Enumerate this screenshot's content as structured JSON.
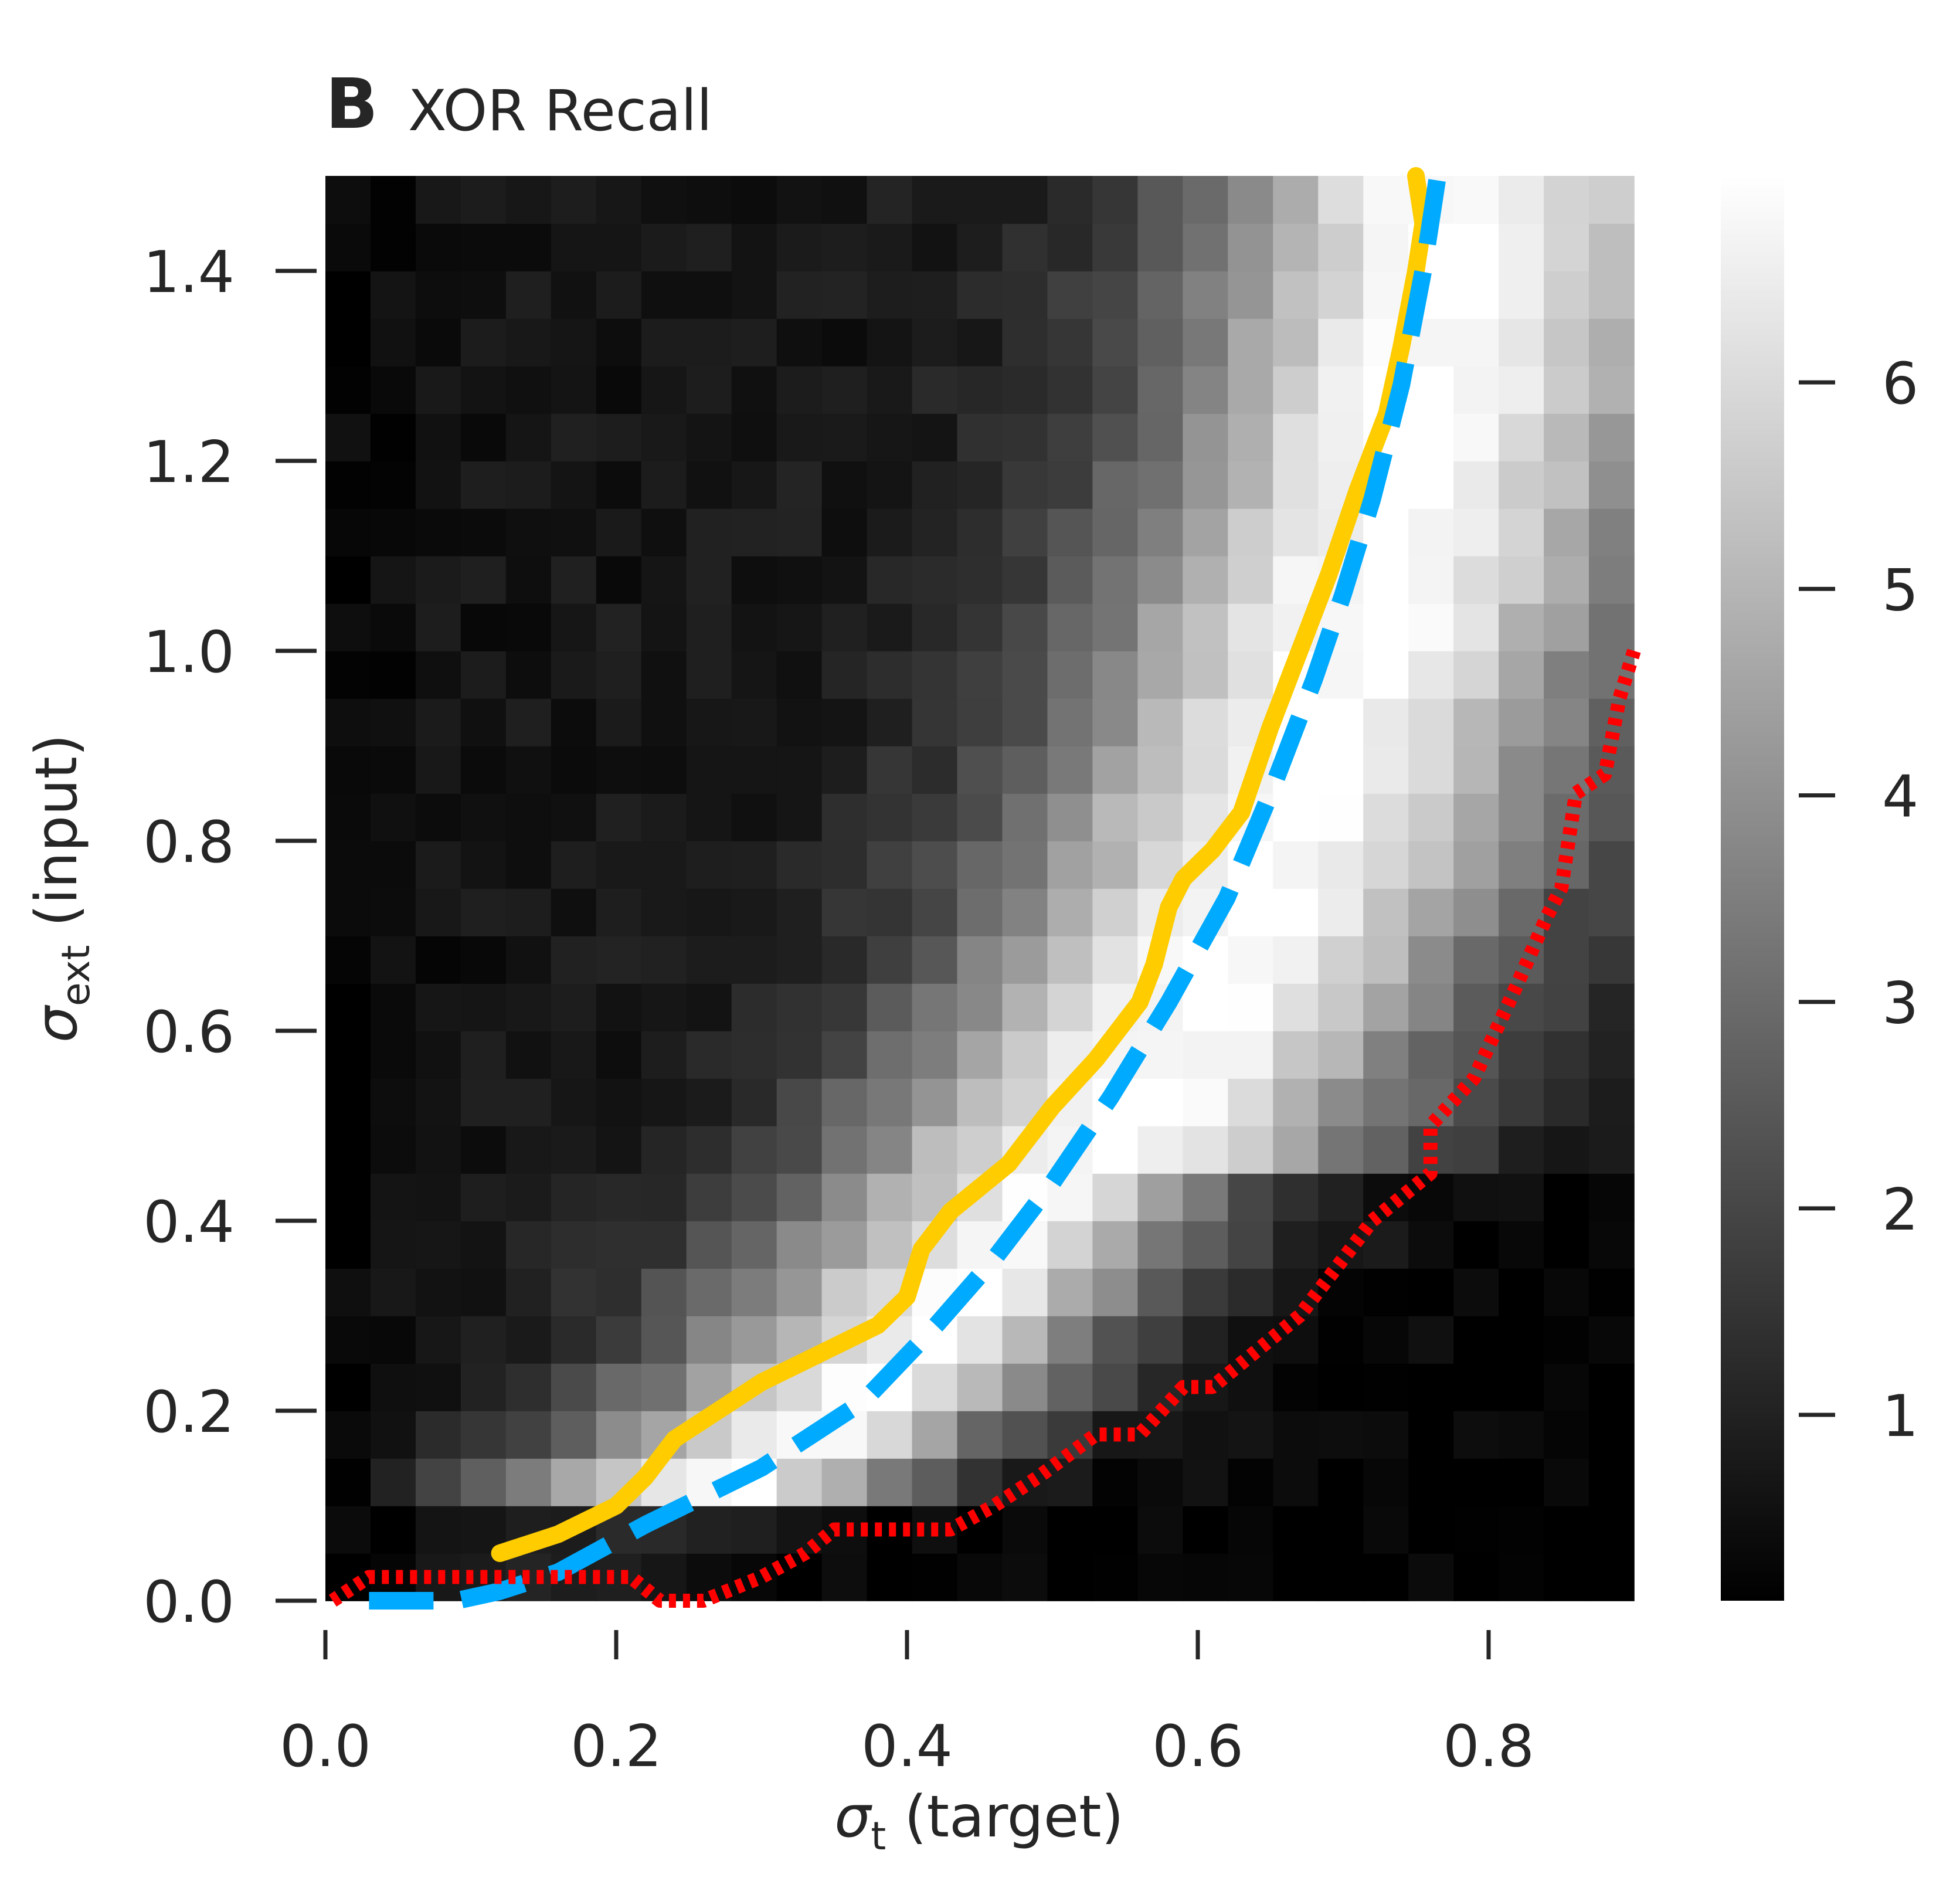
{
  "chart_data": {
    "type": "heatmap",
    "panel_label": "B",
    "title": "XOR Recall",
    "xlabel": {
      "symbol": "σ",
      "sub": "t",
      "text": " (target)"
    },
    "ylabel": {
      "symbol": "σ",
      "sub": "ext",
      "text": " (input)"
    },
    "xlim": [
      0,
      0.9
    ],
    "ylim": [
      0,
      1.5
    ],
    "x_ticks": [
      0.0,
      0.2,
      0.4,
      0.6,
      0.8
    ],
    "x_tick_labels": [
      "0.0",
      "0.2",
      "0.4",
      "0.6",
      "0.8"
    ],
    "y_ticks": [
      0.0,
      0.2,
      0.4,
      0.6,
      0.8,
      1.0,
      1.2,
      1.4
    ],
    "y_tick_labels": [
      "0.0",
      "0.2",
      "0.4",
      "0.6",
      "0.8",
      "1.0",
      "1.2",
      "1.4"
    ],
    "colormap": "gray",
    "colorbar": {
      "range": [
        0.1,
        7.0
      ],
      "ticks": [
        1,
        2,
        3,
        4,
        5,
        6
      ],
      "tick_labels": [
        "1",
        "2",
        "3",
        "4",
        "5",
        "6"
      ]
    },
    "grid": {
      "nx": 29,
      "ny": 30,
      "approximate": true
    },
    "colors": {
      "solid_curve": "#ffcc00",
      "dashed_curve": "#00aaff",
      "dotted_curve": "#ff0000"
    },
    "series": [
      {
        "style": "solid",
        "color": "#ffcc00",
        "x": [
          0.12,
          0.16,
          0.2,
          0.22,
          0.24,
          0.27,
          0.3,
          0.34,
          0.38,
          0.4,
          0.41,
          0.43,
          0.47,
          0.5,
          0.53,
          0.56,
          0.57,
          0.58,
          0.59,
          0.61,
          0.63,
          0.65,
          0.67,
          0.69,
          0.71,
          0.73,
          0.74,
          0.75,
          0.755,
          0.75
        ],
        "y": [
          0.05,
          0.07,
          0.1,
          0.13,
          0.17,
          0.2,
          0.23,
          0.26,
          0.29,
          0.32,
          0.37,
          0.41,
          0.46,
          0.52,
          0.57,
          0.63,
          0.67,
          0.73,
          0.76,
          0.79,
          0.83,
          0.92,
          1.0,
          1.08,
          1.17,
          1.25,
          1.32,
          1.4,
          1.45,
          1.5
        ]
      },
      {
        "style": "dashed",
        "color": "#00aaff",
        "x": [
          0.03,
          0.09,
          0.12,
          0.16,
          0.22,
          0.3,
          0.37,
          0.42,
          0.46,
          0.5,
          0.54,
          0.58,
          0.62,
          0.65,
          0.68,
          0.7,
          0.72,
          0.74,
          0.755,
          0.765
        ],
        "y": [
          0.0,
          0.0,
          0.01,
          0.03,
          0.08,
          0.14,
          0.21,
          0.29,
          0.36,
          0.44,
          0.53,
          0.63,
          0.74,
          0.85,
          0.97,
          1.06,
          1.16,
          1.28,
          1.4,
          1.5
        ]
      },
      {
        "style": "dotted",
        "color": "#ff0000",
        "x": [
          0.005,
          0.03,
          0.21,
          0.23,
          0.26,
          0.3,
          0.33,
          0.35,
          0.43,
          0.46,
          0.49,
          0.53,
          0.56,
          0.59,
          0.61,
          0.67,
          0.72,
          0.76,
          0.76,
          0.79,
          0.82,
          0.84,
          0.85,
          0.86,
          0.88,
          0.89,
          0.9
        ],
        "y": [
          0.0,
          0.025,
          0.025,
          0.0,
          0.0,
          0.025,
          0.05,
          0.075,
          0.075,
          0.1,
          0.13,
          0.175,
          0.175,
          0.225,
          0.225,
          0.3,
          0.4,
          0.45,
          0.5,
          0.55,
          0.65,
          0.72,
          0.75,
          0.85,
          0.87,
          0.95,
          1.0
        ]
      }
    ]
  }
}
